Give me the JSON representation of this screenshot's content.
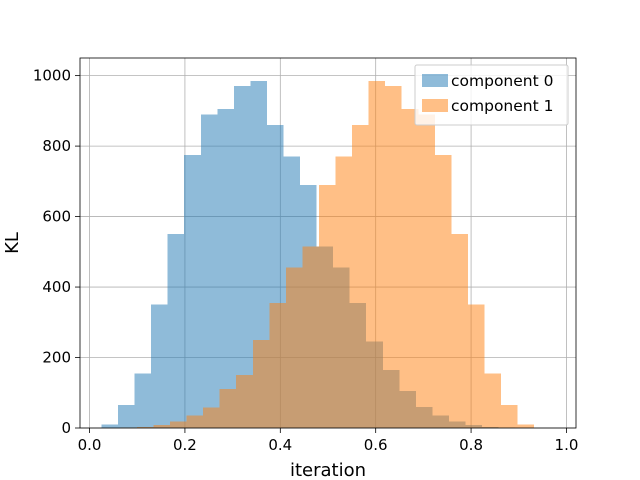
{
  "chart_data": {
    "type": "histogram",
    "xlabel": "iteration",
    "ylabel": "KL",
    "xlim": [
      -0.02,
      1.02
    ],
    "ylim": [
      0,
      1050
    ],
    "xticks": [
      {
        "value": 0.0,
        "label": "0.0"
      },
      {
        "value": 0.2,
        "label": "0.2"
      },
      {
        "value": 0.4,
        "label": "0.4"
      },
      {
        "value": 0.6,
        "label": "0.6"
      },
      {
        "value": 0.8,
        "label": "0.8"
      },
      {
        "value": 1.0,
        "label": "1.0"
      }
    ],
    "yticks": [
      {
        "value": 0,
        "label": "0"
      },
      {
        "value": 200,
        "label": "200"
      },
      {
        "value": 400,
        "label": "400"
      },
      {
        "value": 600,
        "label": "600"
      },
      {
        "value": 800,
        "label": "800"
      },
      {
        "value": 1000,
        "label": "1000"
      }
    ],
    "grid": true,
    "legend_position": "upper right",
    "series": [
      {
        "name": "component 0",
        "color": "#1f77b4",
        "alpha": 0.5,
        "bin_start": 0.025,
        "bin_width": 0.0347,
        "counts": [
          10,
          65,
          155,
          350,
          550,
          775,
          890,
          905,
          970,
          985,
          860,
          770,
          690,
          515,
          455,
          355,
          245,
          165,
          105,
          60,
          35,
          18,
          8,
          3,
          1,
          0,
          0
        ]
      },
      {
        "name": "component 1",
        "color": "#ff7f0e",
        "alpha": 0.5,
        "bin_start": 0.03,
        "bin_width": 0.0347,
        "counts": [
          0,
          1,
          3,
          8,
          18,
          35,
          58,
          110,
          150,
          250,
          355,
          455,
          515,
          690,
          770,
          860,
          985,
          970,
          905,
          890,
          775,
          550,
          350,
          155,
          65,
          10
        ]
      }
    ]
  }
}
